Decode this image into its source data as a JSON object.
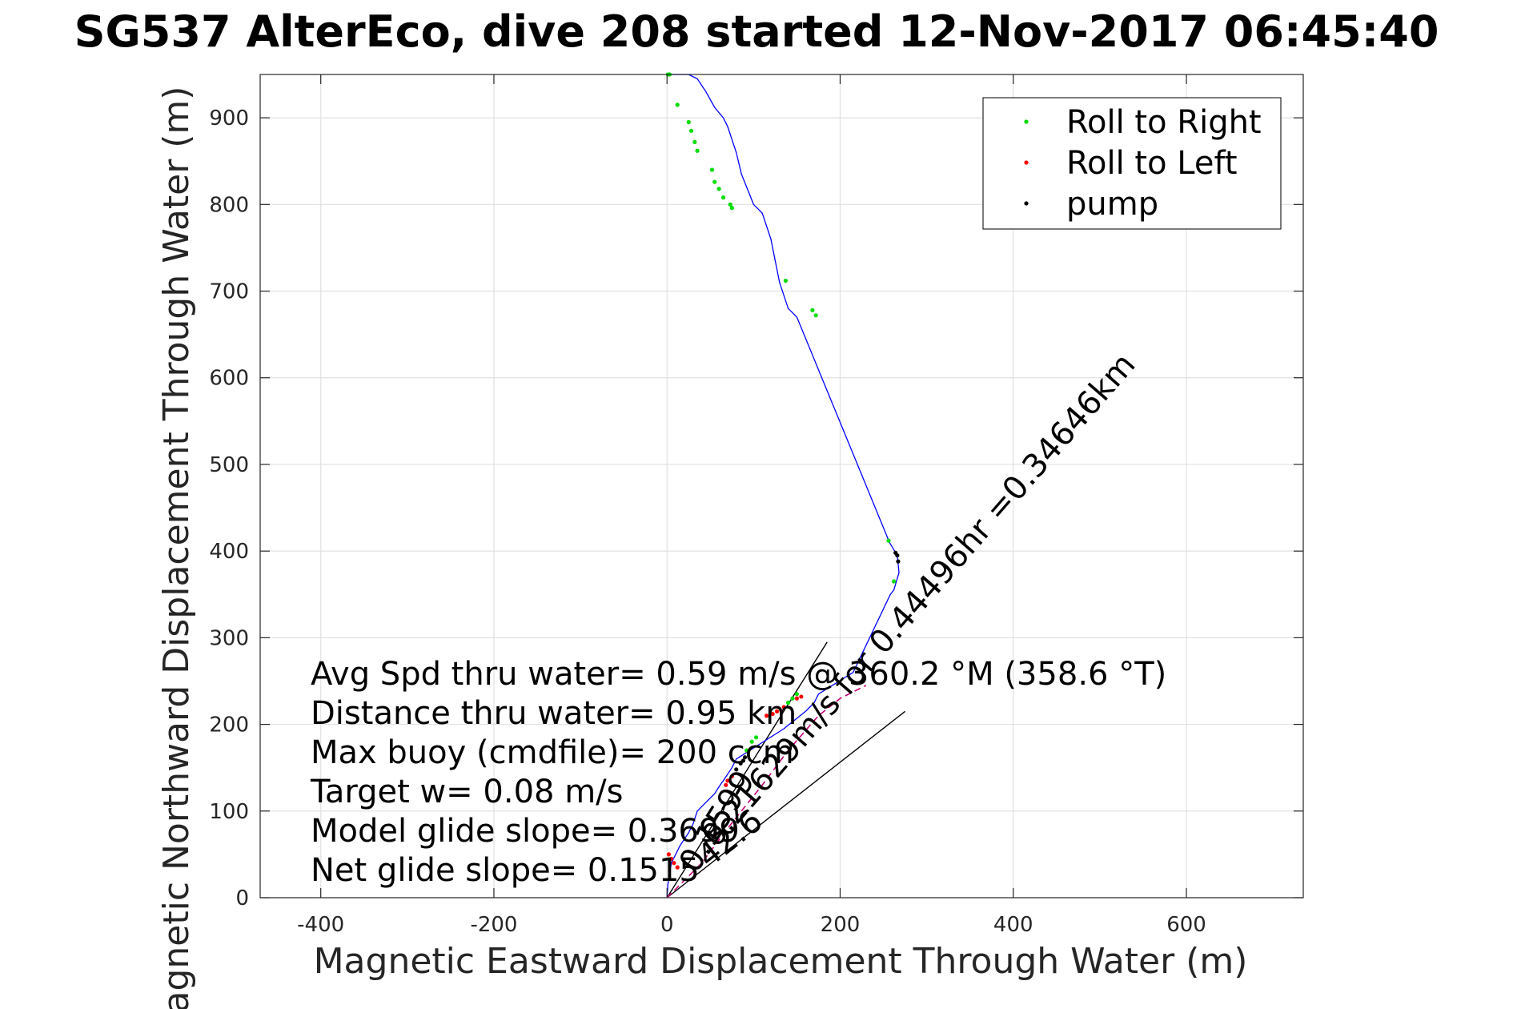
{
  "colors": {
    "track": "#0000ff",
    "roll_right": "#00dd00",
    "roll_left": "#ff0000",
    "pump": "#000000",
    "axis": "#262626",
    "grid": "#e1e1e1",
    "dac_line": "#000000",
    "surface_path": "#cc0077"
  },
  "chart_data": {
    "type": "line",
    "title": "SG537 AlterEco, dive 208 started 12-Nov-2017 06:45:40",
    "xlabel": "Magnetic Eastward Displacement Through Water (m)",
    "ylabel": "Magnetic Northward Displacement Through Water (m)",
    "xlim": [
      -470,
      735
    ],
    "ylim": [
      0,
      950
    ],
    "xticks": [
      -400,
      -200,
      0,
      200,
      400,
      600
    ],
    "yticks": [
      0,
      100,
      200,
      300,
      400,
      500,
      600,
      700,
      800,
      900
    ],
    "xtick_labels": [
      "-400",
      "-200",
      "0",
      "200",
      "400",
      "600"
    ],
    "ytick_labels": [
      "0",
      "100",
      "200",
      "300",
      "400",
      "500",
      "600",
      "700",
      "800",
      "900"
    ],
    "grid": true,
    "legend": {
      "position": "top-right",
      "entries": [
        "Roll to Right",
        "Roll to Left",
        "pump"
      ]
    },
    "track": {
      "name": "displacement",
      "x": [
        0,
        1,
        5,
        15,
        25,
        30,
        35,
        45,
        55,
        60,
        65,
        75,
        80,
        135,
        160,
        170,
        175,
        215,
        258,
        262,
        268,
        266,
        263,
        257,
        150,
        140,
        130,
        120,
        110,
        100,
        92,
        86,
        80,
        75,
        70,
        65,
        55,
        45,
        35,
        25,
        15,
        8,
        3,
        1,
        0
      ],
      "y": [
        0,
        15,
        40,
        60,
        75,
        85,
        100,
        110,
        120,
        128,
        135,
        150,
        160,
        195,
        215,
        225,
        235,
        260,
        350,
        355,
        375,
        395,
        400,
        410,
        670,
        680,
        710,
        760,
        790,
        800,
        820,
        835,
        860,
        875,
        890,
        900,
        912,
        930,
        945,
        950,
        950,
        950,
        950,
        950,
        950
      ]
    },
    "roll_right_points": {
      "x": [
        1,
        3,
        12,
        25,
        28,
        32,
        35,
        52,
        55,
        60,
        65,
        73,
        75,
        137,
        168,
        172,
        256,
        262,
        92,
        98,
        103,
        140,
        145,
        150
      ],
      "y": [
        950,
        950,
        915,
        895,
        885,
        872,
        862,
        840,
        826,
        818,
        808,
        800,
        796,
        712,
        678,
        672,
        412,
        365,
        170,
        180,
        185,
        225,
        230,
        235
      ]
    },
    "roll_left_points": {
      "x": [
        2,
        5,
        8,
        12,
        68,
        70,
        75,
        115,
        122,
        127,
        135,
        150,
        155
      ],
      "y": [
        50,
        45,
        40,
        35,
        130,
        135,
        140,
        210,
        212,
        215,
        220,
        230,
        232
      ]
    },
    "pump_points": {
      "x": [
        264,
        266,
        267,
        85,
        88,
        90,
        80
      ],
      "y": [
        398,
        395,
        388,
        155,
        158,
        162,
        148
      ]
    },
    "dac_lines": [
      {
        "x": [
          0,
          185
        ],
        "y": [
          0,
          295
        ]
      },
      {
        "x": [
          0,
          275
        ],
        "y": [
          0,
          215
        ]
      }
    ],
    "surface_path": {
      "x": [
        0,
        40,
        70,
        110,
        140,
        175,
        200,
        230
      ],
      "y": [
        0,
        40,
        80,
        130,
        170,
        210,
        230,
        245
      ]
    },
    "annotations": {
      "avg_speed": "Avg Spd thru water=  0.59 m/s @ 360.2 °M (358.6 °T)",
      "distance": "Distance thru water=  0.95 km",
      "max_buoy": "Max buoy (cmdfile)= 200 ccm",
      "target_w": "Target w= 0.08 m/s",
      "model_glide": "Model glide slope= 0.3699",
      "net_glide": "Net glide slope= 0.1515",
      "rotated_1": "0.21629m/s for 0.44496hr =0.34646km",
      "rotated_2": "0.1599",
      "rotated_3": "42.6"
    }
  }
}
